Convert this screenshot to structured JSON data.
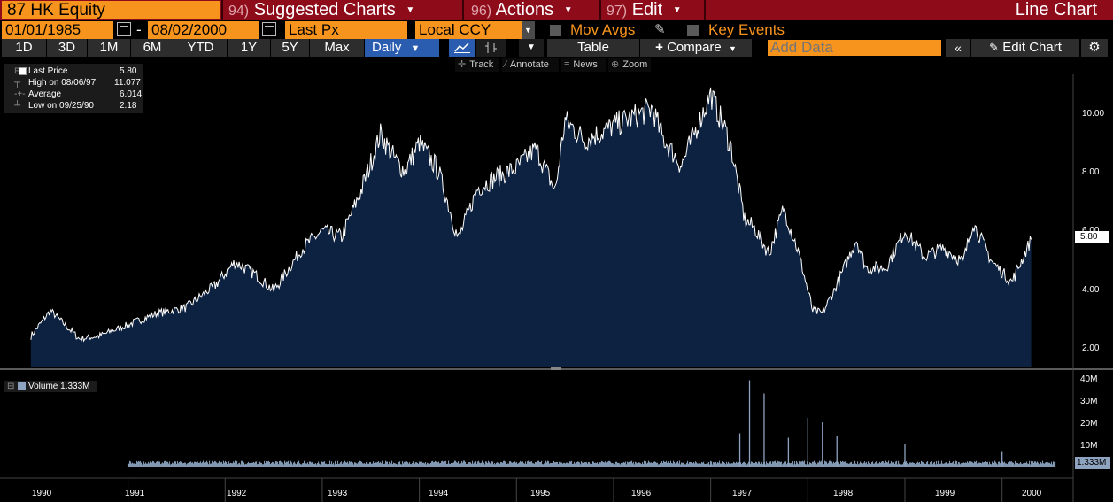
{
  "header": {
    "ticker": "87 HK Equity",
    "menus": [
      {
        "num": "94)",
        "label": "Suggested Charts"
      },
      {
        "num": "96)",
        "label": "Actions"
      },
      {
        "num": "97)",
        "label": "Edit"
      }
    ],
    "window_title": "Line Chart"
  },
  "controls": {
    "start_date": "01/01/1985",
    "end_date": "08/02/2000",
    "field": "Last Px",
    "currency": "Local CCY",
    "mov_avgs": "Mov Avgs",
    "key_events": "Key Events"
  },
  "toolbar": {
    "periods": [
      "1D",
      "3D",
      "1M",
      "6M",
      "YTD",
      "1Y",
      "5Y",
      "Max"
    ],
    "frequency": "Daily",
    "table": "Table",
    "compare": "Compare",
    "add_data_placeholder": "Add Data",
    "edit_chart": "Edit Chart"
  },
  "tools": [
    "Track",
    "Annotate",
    "News",
    "Zoom"
  ],
  "legend": {
    "last_price_label": "Last Price",
    "last_price": "5.80",
    "high_label": "High on 08/06/97",
    "high": "11.077",
    "average_label": "Average",
    "average": "6.014",
    "low_label": "Low on 09/25/90",
    "low": "2.18"
  },
  "volume_legend": "Volume 1.333M",
  "last_price_tag": "5.80",
  "last_volume_tag": "1.333M",
  "colors": {
    "accent": "#f7941d",
    "titlebar": "#8e0b1a",
    "area_fill": "#0d2240",
    "active": "#2a5db0"
  },
  "chart_data": {
    "type": "area",
    "series": [
      {
        "name": "Last Price",
        "x": [
          1990.0,
          1990.2,
          1990.5,
          1990.7,
          1991.0,
          1991.3,
          1991.6,
          1991.9,
          1992.1,
          1992.3,
          1992.5,
          1992.8,
          1993.0,
          1993.2,
          1993.4,
          1993.6,
          1993.75,
          1993.85,
          1994.0,
          1994.2,
          1994.4,
          1994.6,
          1994.8,
          1995.0,
          1995.2,
          1995.4,
          1995.5,
          1995.7,
          1995.9,
          1996.0,
          1996.2,
          1996.4,
          1996.5,
          1996.7,
          1996.9,
          1997.0,
          1997.2,
          1997.35,
          1997.45,
          1997.6,
          1997.75,
          1997.9,
          1998.05,
          1998.15,
          1998.3,
          1998.5,
          1998.6,
          1998.8,
          1999.0,
          1999.2,
          1999.4,
          1999.6,
          1999.7,
          1999.9,
          2000.1,
          2000.3
        ],
        "y": [
          2.4,
          3.3,
          2.3,
          2.4,
          2.8,
          3.2,
          3.4,
          4.2,
          5.0,
          4.6,
          4.0,
          5.5,
          6.1,
          5.9,
          7.5,
          9.5,
          8.6,
          8.2,
          9.2,
          8.2,
          5.8,
          7.6,
          8.0,
          8.3,
          9.0,
          7.5,
          10.0,
          9.3,
          9.6,
          9.8,
          10.1,
          10.4,
          9.4,
          8.4,
          10.1,
          10.9,
          9.2,
          6.5,
          6.2,
          5.3,
          6.9,
          5.4,
          3.3,
          3.2,
          4.2,
          5.8,
          4.8,
          4.8,
          6.1,
          5.2,
          5.5,
          5.0,
          6.4,
          5.0,
          4.3,
          5.8
        ]
      },
      {
        "name": "Volume",
        "x": [
          1991.0,
          1995.0,
          1997.0,
          1997.3,
          1997.4,
          1997.55,
          1997.8,
          1998.0,
          1998.15,
          1998.3,
          1999.0,
          2000.0
        ],
        "y": [
          1.2,
          1.0,
          1.3,
          15,
          39,
          33,
          13,
          22,
          20,
          14,
          10,
          7
        ]
      }
    ],
    "x_ticks": [
      "1990",
      "1991",
      "1992",
      "1993",
      "1994",
      "1995",
      "1996",
      "1997",
      "1998",
      "1999",
      "2000"
    ],
    "y_ticks": [
      "10.00",
      "8.00",
      "6.00",
      "4.00",
      "2.00"
    ],
    "y2_ticks": [
      "40M",
      "30M",
      "20M",
      "10M"
    ],
    "ylim": [
      1.3,
      11.6
    ],
    "y2lim": [
      0,
      40
    ],
    "grid": false
  }
}
